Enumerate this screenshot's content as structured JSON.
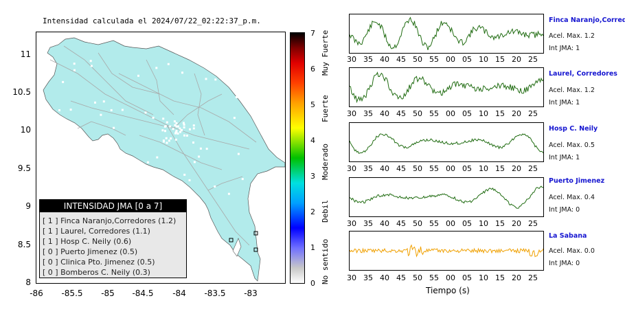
{
  "map": {
    "title": "Intensidad calculada el 2024/07/22_02:22:37_p.m.",
    "lat_ticks": [
      "11",
      "10.5",
      "10",
      "9.5",
      "9",
      "8.5",
      "8"
    ],
    "lon_ticks": [
      "-86",
      "-85.5",
      "-85",
      "-84.5",
      "-84",
      "-83.5",
      "-83"
    ],
    "land_color": "#b2ebeb",
    "road_color": "#a8a8a8"
  },
  "legend": {
    "header": "INTENSIDAD JMA [0 a 7]",
    "rows": [
      "[ 1 ]  Finca Naranjo,Corredores (1.2)",
      "[ 1 ]  Laurel, Corredores (1.1)",
      "[ 1 ]  Hosp C. Neily (0.6)",
      "[ 0 ]  Puerto Jimenez (0.5)",
      "[ 0 ]  Clinica Pto. Jimenez (0.5)",
      "[ 0 ]  Bomberos C. Neily (0.3)"
    ]
  },
  "colorbar": {
    "ticks": [
      "7",
      "6",
      "5",
      "4",
      "3",
      "2",
      "1",
      "0"
    ],
    "categories": [
      "Muy Fuerte",
      "Fuerte",
      "Moderado",
      "Debil",
      "No sentido"
    ]
  },
  "stations": [
    {
      "name": "Finca Naranjo,Corredor",
      "acel": "Acel. Max. 1.2",
      "int": "Int JMA: 1",
      "color": "#1f6b10"
    },
    {
      "name": "Laurel, Corredores",
      "acel": "Acel. Max. 1.2",
      "int": "Int JMA: 1",
      "color": "#1f6b10"
    },
    {
      "name": "Hosp C. Neily",
      "acel": "Acel. Max. 0.5",
      "int": "Int JMA: 1",
      "color": "#1f6b10"
    },
    {
      "name": "Puerto Jimenez",
      "acel": "Acel. Max. 0.4",
      "int": "Int JMA: 0",
      "color": "#1f6b10"
    },
    {
      "name": "La Sabana",
      "acel": "Acel. Max. 0.0",
      "int": "Int JMA: 0",
      "color": "#f0a000"
    }
  ],
  "time_ticks": [
    "30",
    "35",
    "40",
    "45",
    "50",
    "55",
    "00",
    "05",
    "10",
    "15",
    "20",
    "25"
  ],
  "xaxis_title": "Tiempo (s)"
}
